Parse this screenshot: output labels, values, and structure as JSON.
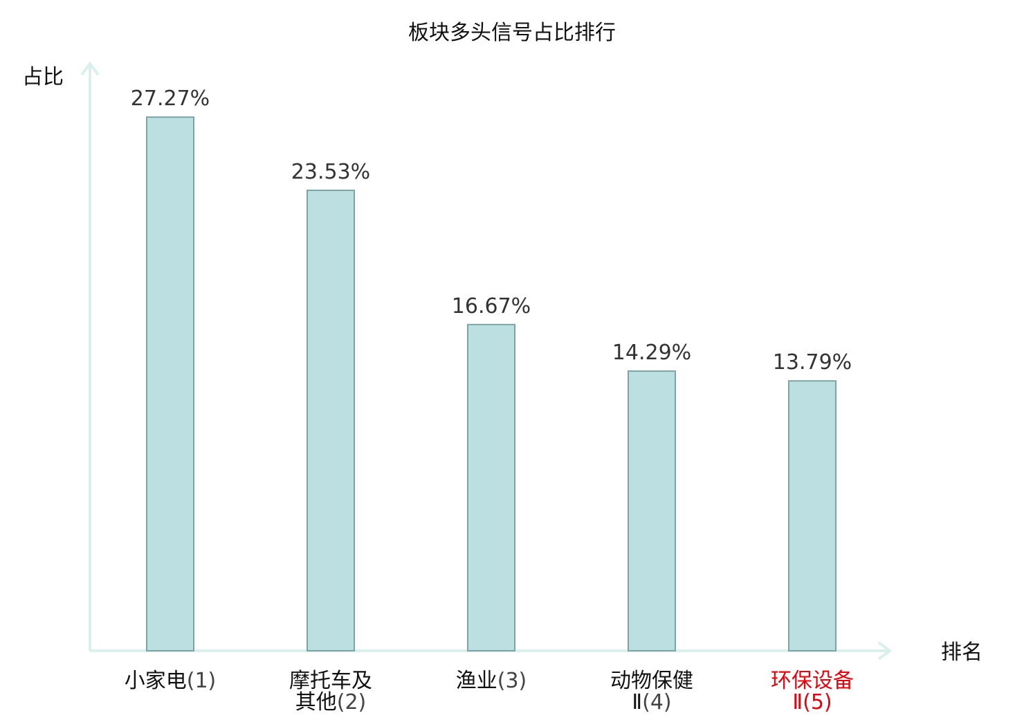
{
  "title": "板块多头信号占比排行",
  "chart_data": {
    "type": "bar",
    "title": "板块多头信号占比排行",
    "ylabel": "占比",
    "xlabel": "排名",
    "categories": [
      {
        "lines": [
          {
            "main": "小家电",
            "suffix": "(1)"
          }
        ]
      },
      {
        "lines": [
          {
            "main": "摩托车及",
            "suffix": ""
          },
          {
            "main": "其他",
            "suffix": "(2)"
          }
        ]
      },
      {
        "lines": [
          {
            "main": "渔业",
            "suffix": "(3)"
          }
        ]
      },
      {
        "lines": [
          {
            "main": "动物保健",
            "suffix": ""
          },
          {
            "main": "Ⅱ",
            "suffix": "(4)"
          }
        ]
      },
      {
        "lines": [
          {
            "main": "环保设备",
            "suffix": ""
          },
          {
            "main": "Ⅱ",
            "suffix": "(5)"
          }
        ],
        "highlight": true
      }
    ],
    "values": [
      27.27,
      23.53,
      16.67,
      14.29,
      13.79
    ],
    "value_labels": [
      "27.27%",
      "23.53%",
      "16.67%",
      "14.29%",
      "13.79%"
    ],
    "ylim": [
      0,
      30
    ],
    "grid": false,
    "colors": {
      "bar_fill": "#bce0e1",
      "bar_stroke": "#7fa3a4",
      "axis": "#d9f0ec",
      "highlight_text": "#e8000b"
    }
  }
}
